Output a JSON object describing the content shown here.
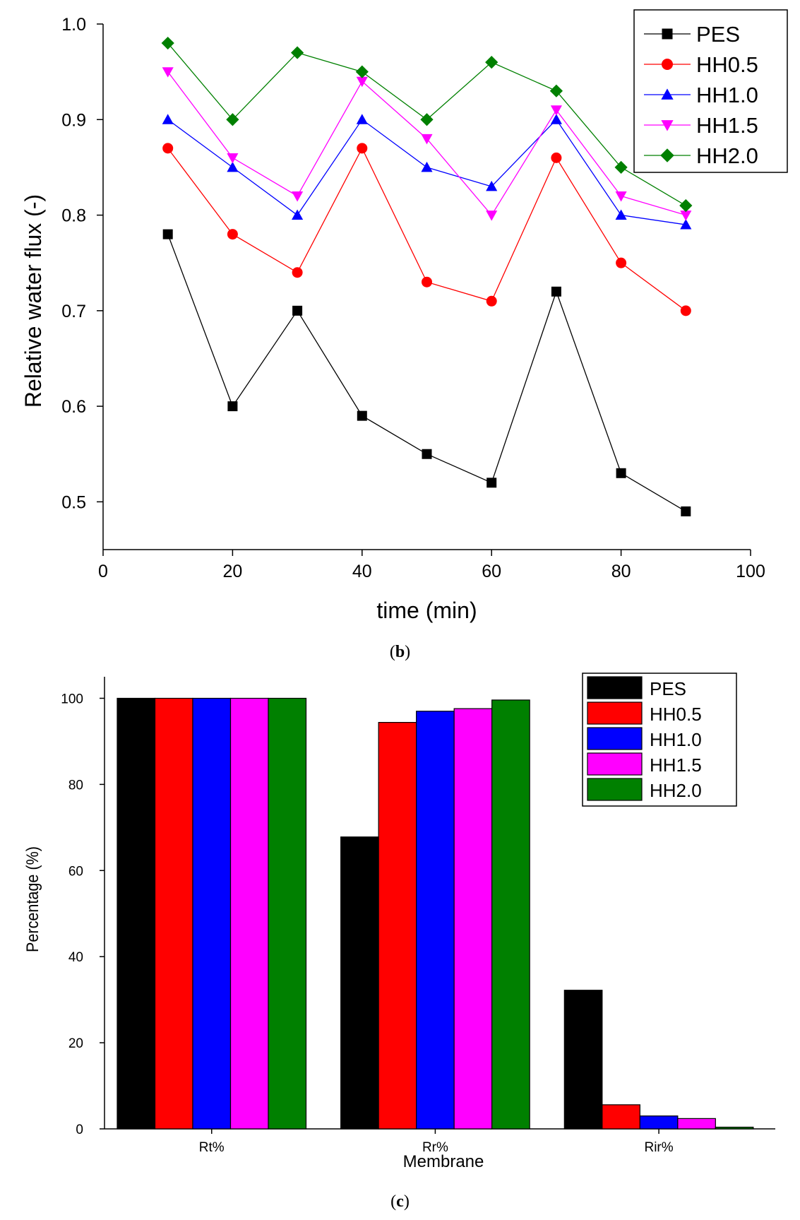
{
  "chart_data": [
    {
      "id": "b",
      "type": "line",
      "caption_open": "(",
      "caption_letter": "b",
      "caption_close": ")",
      "xlabel": "time (min)",
      "ylabel": "Relative water flux (-)",
      "xlim": [
        0,
        100
      ],
      "ylim": [
        0.45,
        1.0
      ],
      "xticks": [
        0,
        20,
        40,
        60,
        80,
        100
      ],
      "yticks": [
        0.5,
        0.6,
        0.7,
        0.8,
        0.9,
        1.0
      ],
      "ytick_labels": [
        "0.5",
        "0.6",
        "0.7",
        "0.8",
        "0.9",
        "1.0"
      ],
      "x": [
        10,
        20,
        30,
        40,
        50,
        60,
        70,
        80,
        90
      ],
      "series": [
        {
          "name": "PES",
          "color": "#000000",
          "marker": "square",
          "values": [
            0.78,
            0.6,
            0.7,
            0.59,
            0.55,
            0.52,
            0.72,
            0.53,
            0.49
          ]
        },
        {
          "name": "HH0.5",
          "color": "#ff0000",
          "marker": "circle",
          "values": [
            0.87,
            0.78,
            0.74,
            0.87,
            0.73,
            0.71,
            0.86,
            0.75,
            0.7
          ]
        },
        {
          "name": "HH1.0",
          "color": "#0000ff",
          "marker": "triangle-up",
          "values": [
            0.9,
            0.85,
            0.8,
            0.9,
            0.85,
            0.83,
            0.9,
            0.8,
            0.79
          ]
        },
        {
          "name": "HH1.5",
          "color": "#ff00ff",
          "marker": "triangle-down",
          "values": [
            0.95,
            0.86,
            0.82,
            0.94,
            0.88,
            0.8,
            0.91,
            0.82,
            0.8
          ]
        },
        {
          "name": "HH2.0",
          "color": "#008000",
          "marker": "diamond",
          "values": [
            0.98,
            0.9,
            0.97,
            0.95,
            0.9,
            0.96,
            0.93,
            0.85,
            0.81
          ]
        }
      ],
      "legend_position": "top-right"
    },
    {
      "id": "c",
      "type": "bar",
      "caption_open": "(",
      "caption_letter": "c",
      "caption_close": ")",
      "xlabel": "Membrane",
      "ylabel": "Percentage (%)",
      "ylim": [
        0,
        105
      ],
      "yticks": [
        0,
        20,
        40,
        60,
        80,
        100
      ],
      "categories": [
        "Rt%",
        "Rr%",
        "Rir%"
      ],
      "series": [
        {
          "name": "PES",
          "color": "#000000",
          "values": [
            100,
            67.8,
            32.2
          ]
        },
        {
          "name": "HH0.5",
          "color": "#ff0000",
          "values": [
            100,
            94.4,
            5.6
          ]
        },
        {
          "name": "HH1.0",
          "color": "#0000ff",
          "values": [
            100,
            97.0,
            3.0
          ]
        },
        {
          "name": "HH1.5",
          "color": "#ff00ff",
          "values": [
            100,
            97.6,
            2.4
          ]
        },
        {
          "name": "HH2.0",
          "color": "#008000",
          "values": [
            100,
            99.6,
            0.4
          ]
        }
      ],
      "legend_position": "top-right"
    }
  ]
}
